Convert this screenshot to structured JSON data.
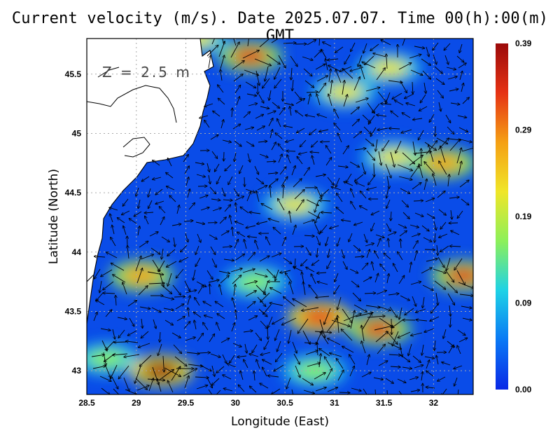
{
  "chart_data": {
    "type": "heatmap",
    "title": "Current velocity (m/s). Date 2025.07.07. Time 00(h):00(m) GMT",
    "annotation": "Z = 2.5 m",
    "xlabel": "Longitude (East)",
    "ylabel": "Latitude (North)",
    "xlim": [
      28.5,
      32.4
    ],
    "ylim": [
      42.8,
      45.8
    ],
    "x_ticks": [
      "28.5",
      "29",
      "29.5",
      "30",
      "30.5",
      "31",
      "31.5",
      "32"
    ],
    "y_ticks": [
      "43",
      "43.5",
      "44",
      "44.5",
      "45",
      "45.5"
    ],
    "grid": true,
    "colorbar": {
      "ticks": [
        "0.00",
        "0.09",
        "0.19",
        "0.29",
        "0.39"
      ],
      "range": [
        0.0,
        0.39
      ],
      "colors": [
        "#0a28e6",
        "#0a78f5",
        "#1ed2e6",
        "#8cf05a",
        "#f0e628",
        "#f5a014",
        "#e63214",
        "#9b0a0a"
      ]
    },
    "speed_hotspots": [
      {
        "lon": 30.85,
        "lat": 43.45,
        "speed": 0.36
      },
      {
        "lon": 31.45,
        "lat": 43.35,
        "speed": 0.33
      },
      {
        "lon": 29.25,
        "lat": 43.0,
        "speed": 0.37
      },
      {
        "lon": 30.15,
        "lat": 45.65,
        "speed": 0.34
      },
      {
        "lon": 29.05,
        "lat": 43.8,
        "speed": 0.3
      },
      {
        "lon": 32.3,
        "lat": 43.8,
        "speed": 0.32
      },
      {
        "lon": 32.1,
        "lat": 44.75,
        "speed": 0.29
      },
      {
        "lon": 31.6,
        "lat": 44.8,
        "speed": 0.22
      },
      {
        "lon": 30.6,
        "lat": 44.4,
        "speed": 0.2
      },
      {
        "lon": 30.2,
        "lat": 43.75,
        "speed": 0.18
      },
      {
        "lon": 31.1,
        "lat": 45.35,
        "speed": 0.2
      },
      {
        "lon": 31.55,
        "lat": 45.55,
        "speed": 0.2
      },
      {
        "lon": 30.8,
        "lat": 43.0,
        "speed": 0.18
      },
      {
        "lon": 28.7,
        "lat": 43.1,
        "speed": 0.16
      },
      {
        "lon": 29.6,
        "lat": 45.8,
        "speed": 0.25
      }
    ]
  }
}
